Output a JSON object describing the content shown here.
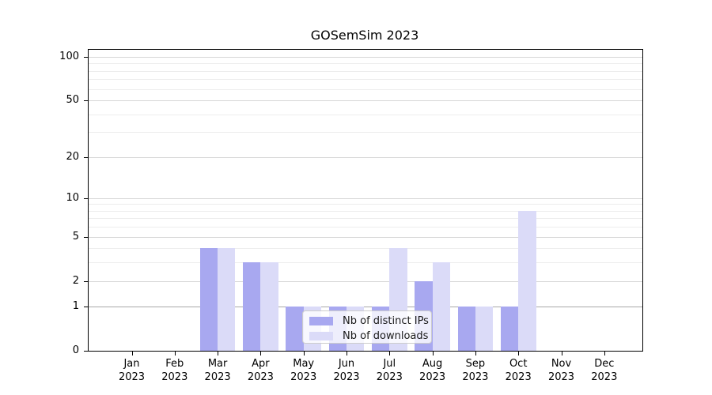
{
  "chart_data": {
    "type": "bar",
    "title": "GOSemSim 2023",
    "year_label": "2023",
    "categories": [
      "Jan",
      "Feb",
      "Mar",
      "Apr",
      "May",
      "Jun",
      "Jul",
      "Aug",
      "Sep",
      "Oct",
      "Nov",
      "Dec"
    ],
    "series": [
      {
        "name": "Nb of distinct IPs",
        "color": "#a8a8f0",
        "values": [
          0,
          0,
          4,
          3,
          1,
          1,
          1,
          2,
          1,
          1,
          0,
          0
        ]
      },
      {
        "name": "Nb of downloads",
        "color": "#dbdbf8",
        "values": [
          0,
          0,
          4,
          3,
          1,
          1,
          4,
          3,
          1,
          8,
          0,
          0
        ]
      }
    ],
    "xlabel": "",
    "ylabel": "",
    "y_scale": "log1p",
    "ylim": [
      0,
      110
    ],
    "y_major_ticks": [
      100,
      50,
      20,
      10,
      5,
      2,
      1,
      0
    ],
    "y_minor_gridlines": [
      3,
      4,
      6,
      7,
      8,
      9,
      30,
      40,
      60,
      70,
      80,
      90
    ],
    "grid": true,
    "legend_position": "inside lower-center-left"
  },
  "colors": {
    "grid_major": "#d7d7d7",
    "grid_minor": "#ededed",
    "grid_baseline_one": "#a8a8a8",
    "axis": "#000000",
    "legend_border": "#cccccc"
  }
}
